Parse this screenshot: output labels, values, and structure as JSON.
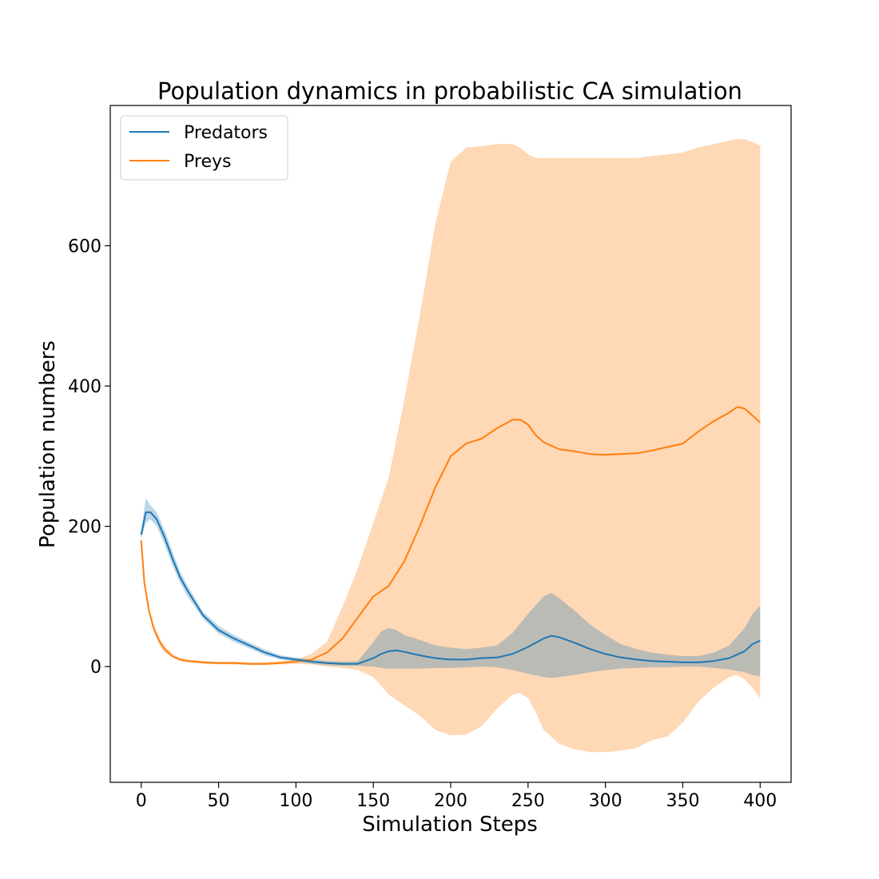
{
  "chart_data": {
    "type": "line",
    "title": "Population dynamics in probabilistic CA simulation",
    "xlabel": "Simulation Steps",
    "ylabel": "Population numbers",
    "xlim": [
      -20,
      420
    ],
    "ylim": [
      -165,
      800
    ],
    "xticks": [
      0,
      50,
      100,
      150,
      200,
      250,
      300,
      350,
      400
    ],
    "yticks": [
      0,
      200,
      400,
      600
    ],
    "grid": false,
    "legend_position": "top-left",
    "series": [
      {
        "name": "Predators",
        "color": "#1f77b4",
        "band_color": "#1f77b4",
        "band_opacity": 0.3,
        "x": [
          0,
          3,
          6,
          10,
          15,
          20,
          25,
          30,
          40,
          50,
          60,
          70,
          80,
          90,
          100,
          110,
          120,
          130,
          140,
          150,
          155,
          160,
          165,
          170,
          180,
          190,
          200,
          210,
          220,
          230,
          240,
          250,
          260,
          265,
          270,
          280,
          290,
          300,
          310,
          320,
          330,
          340,
          350,
          360,
          370,
          380,
          390,
          395,
          400
        ],
        "mean": [
          188,
          220,
          220,
          210,
          185,
          155,
          128,
          108,
          73,
          52,
          40,
          30,
          20,
          13,
          10,
          7,
          5,
          4,
          4,
          12,
          18,
          22,
          23,
          21,
          16,
          12,
          10,
          10,
          12,
          13,
          18,
          28,
          40,
          44,
          42,
          34,
          25,
          18,
          13,
          10,
          8,
          7,
          6,
          6,
          8,
          12,
          22,
          32,
          37
        ],
        "lower": [
          182,
          205,
          210,
          200,
          175,
          145,
          120,
          100,
          68,
          47,
          35,
          26,
          16,
          10,
          7,
          4,
          2,
          1,
          1,
          0,
          -2,
          -3,
          -3,
          -3,
          -3,
          -2,
          -2,
          -1,
          0,
          -1,
          -5,
          -10,
          -15,
          -16,
          -15,
          -12,
          -8,
          -5,
          -3,
          -2,
          -1,
          -1,
          0,
          0,
          -2,
          -4,
          -8,
          -12,
          -14
        ],
        "upper": [
          195,
          240,
          230,
          220,
          195,
          165,
          136,
          115,
          78,
          58,
          45,
          34,
          24,
          16,
          13,
          10,
          8,
          7,
          8,
          35,
          50,
          55,
          52,
          45,
          38,
          30,
          27,
          25,
          27,
          30,
          48,
          75,
          100,
          105,
          98,
          80,
          60,
          45,
          32,
          25,
          20,
          17,
          15,
          15,
          20,
          30,
          55,
          75,
          87
        ]
      },
      {
        "name": "Preys",
        "color": "#ff7f0e",
        "band_color": "#ff7f0e",
        "band_opacity": 0.3,
        "x": [
          0,
          2,
          5,
          8,
          12,
          15,
          20,
          25,
          30,
          40,
          50,
          60,
          70,
          80,
          90,
          100,
          110,
          120,
          130,
          140,
          150,
          160,
          170,
          180,
          190,
          200,
          210,
          220,
          230,
          240,
          245,
          250,
          255,
          260,
          270,
          280,
          290,
          300,
          310,
          320,
          330,
          340,
          350,
          360,
          370,
          380,
          385,
          390,
          395,
          400
        ],
        "mean": [
          180,
          120,
          80,
          55,
          35,
          25,
          15,
          10,
          8,
          6,
          5,
          5,
          4,
          4,
          5,
          7,
          10,
          20,
          40,
          70,
          100,
          115,
          150,
          200,
          255,
          300,
          318,
          325,
          340,
          352,
          352,
          345,
          330,
          320,
          310,
          307,
          303,
          302,
          303,
          304,
          308,
          313,
          318,
          335,
          350,
          362,
          370,
          368,
          358,
          348
        ],
        "lower": [
          178,
          115,
          75,
          50,
          30,
          20,
          13,
          8,
          6,
          4,
          3,
          3,
          2,
          2,
          3,
          4,
          3,
          0,
          -2,
          -5,
          -15,
          -40,
          -55,
          -70,
          -90,
          -98,
          -97,
          -85,
          -60,
          -40,
          -38,
          -45,
          -65,
          -90,
          -110,
          -118,
          -122,
          -122,
          -120,
          -116,
          -105,
          -100,
          -80,
          -50,
          -30,
          -15,
          -12,
          -18,
          -30,
          -45
        ],
        "upper": [
          182,
          125,
          85,
          60,
          40,
          30,
          18,
          13,
          10,
          8,
          7,
          7,
          6,
          6,
          8,
          10,
          18,
          35,
          85,
          140,
          205,
          270,
          380,
          500,
          630,
          720,
          740,
          742,
          745,
          745,
          740,
          730,
          725,
          725,
          725,
          725,
          725,
          725,
          725,
          725,
          728,
          730,
          733,
          740,
          745,
          750,
          752,
          752,
          748,
          743
        ]
      }
    ]
  }
}
